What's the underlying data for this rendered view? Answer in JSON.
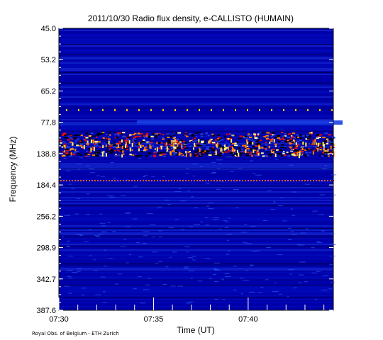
{
  "chart_data": {
    "type": "heatmap",
    "title": "2011/10/30  Radio flux density, e-CALLISTO (HUMAIN)",
    "xlabel": "Time (UT)",
    "ylabel": "Frequency (MHz)",
    "x_ticks": [
      "07:30",
      "07:35",
      "07:40"
    ],
    "y_ticks": [
      "45.0",
      "53.2",
      "65.2",
      "77.8",
      "138.8",
      "184.4",
      "256.2",
      "298.9",
      "342.7",
      "387.6"
    ],
    "xlim": [
      "07:30",
      "07:44:30"
    ],
    "grid": false,
    "colormap": [
      "#00007a",
      "#0010c8",
      "#1f3ad8",
      "#000000",
      "#e01010",
      "#ff7a00",
      "#fff8a0"
    ]
  },
  "footer": {
    "credit": "Royal Obs. of Belgium - ETH Zurich"
  }
}
